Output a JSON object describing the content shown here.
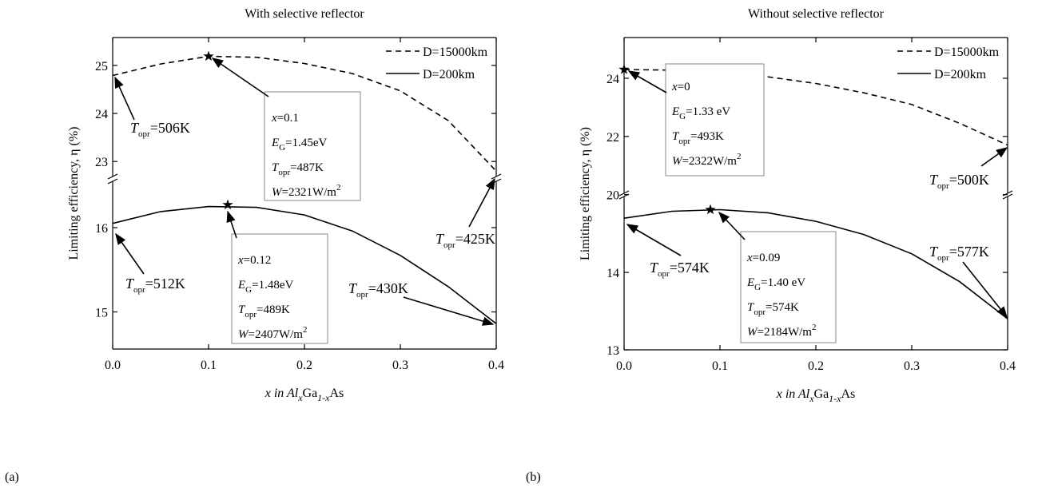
{
  "chart_data": [
    {
      "type": "line",
      "panel_label": "(a)",
      "title": "With selective reflector",
      "xlabel": [
        "x",
        " in Al",
        "x",
        "Ga",
        "1-x",
        "As"
      ],
      "ylabel": "Limiting efficiency, η (%)",
      "x": [
        0,
        0.05,
        0.1,
        0.15,
        0.2,
        0.25,
        0.3,
        0.35,
        0.4
      ],
      "xlim": [
        0,
        0.4
      ],
      "xticks": [
        {
          "value": 0,
          "label": "0.0"
        },
        0.1,
        0.2,
        0.3,
        0.4
      ],
      "y_axis_break": true,
      "ylim": [
        14.56,
        16.53
      ],
      "yticks": [
        15,
        16
      ],
      "y2lim": [
        22.72,
        25.58
      ],
      "y2ticks": [
        23,
        24,
        25
      ],
      "legend": "upper right",
      "series": [
        {
          "name": "D=15000km",
          "color": "#000000",
          "line_style": "dashed",
          "axis": "y2",
          "values": [
            24.79,
            25.03,
            25.19,
            25.17,
            25.04,
            24.83,
            24.47,
            23.85,
            22.8
          ],
          "peak": {
            "x": 0.1,
            "y": 25.19
          }
        },
        {
          "name": "D=200km",
          "color": "#000000",
          "line_style": "solid",
          "values": [
            16.05,
            16.19,
            16.25,
            16.24,
            16.15,
            15.96,
            15.67,
            15.3,
            14.86
          ],
          "peak": {
            "x": 0.12,
            "y": 16.27
          }
        }
      ],
      "annotations": [
        {
          "lines": [
            {
              "symbol": "T",
              "sub": "opr",
              "rest": "=506K"
            }
          ]
        },
        {
          "lines": [
            {
              "symbol": "x",
              "rest": "=0.1"
            },
            {
              "symbol": "E",
              "sub": "G",
              "rest": "=1.45eV"
            },
            {
              "symbol": "T",
              "sub": "opr",
              "rest": "=487K"
            },
            {
              "symbol": "W",
              "rest": "=2321W/m",
              "sup": "2"
            }
          ]
        },
        {
          "lines": [
            {
              "symbol": "T",
              "sub": "opr",
              "rest": "=425K"
            }
          ]
        },
        {
          "lines": [
            {
              "symbol": "T",
              "sub": "opr",
              "rest": "=512K"
            }
          ]
        },
        {
          "lines": [
            {
              "symbol": "x",
              "rest": "=0.12"
            },
            {
              "symbol": "E",
              "sub": "G",
              "rest": "=1.48eV"
            },
            {
              "symbol": "T",
              "sub": "opr",
              "rest": "=489K"
            },
            {
              "symbol": "W",
              "rest": "=2407W/m",
              "sup": "2"
            }
          ]
        },
        {
          "lines": [
            {
              "symbol": "T",
              "sub": "opr",
              "rest": "=430K"
            }
          ]
        }
      ]
    },
    {
      "type": "line",
      "panel_label": "(b)",
      "title": "Without selective reflector",
      "xlabel": [
        "x",
        " in Al",
        "x",
        "Ga",
        "1-x",
        "As"
      ],
      "ylabel": "Limiting efficiency, η (%)",
      "x": [
        0,
        0.05,
        0.1,
        0.15,
        0.2,
        0.25,
        0.3,
        0.35,
        0.4
      ],
      "xlim": [
        0,
        0.4
      ],
      "xticks": [
        {
          "value": 0,
          "label": "0.0"
        },
        0.1,
        0.2,
        0.3,
        0.4
      ],
      "y_axis_break": true,
      "ylim": [
        13,
        14.96
      ],
      "yticks": [
        13,
        14
      ],
      "y2lim": [
        20.1,
        25.4
      ],
      "y2ticks": [
        20,
        22,
        24
      ],
      "legend": "upper right",
      "series": [
        {
          "name": "D=15000km",
          "color": "#000000",
          "line_style": "dashed",
          "axis": "y2",
          "values": [
            24.3,
            24.28,
            24.2,
            24.05,
            23.82,
            23.5,
            23.1,
            22.45,
            21.7
          ],
          "peak": {
            "x": 0,
            "y": 24.3
          }
        },
        {
          "name": "D=200km",
          "color": "#000000",
          "line_style": "solid",
          "values": [
            14.7,
            14.79,
            14.81,
            14.77,
            14.66,
            14.49,
            14.24,
            13.88,
            13.4
          ],
          "peak": {
            "x": 0.09,
            "y": 14.81
          }
        }
      ],
      "annotations": [
        {
          "lines": [
            {
              "symbol": "x",
              "rest": "=0"
            },
            {
              "symbol": "E",
              "sub": "G",
              "rest": "=1.33 eV"
            },
            {
              "symbol": "T",
              "sub": "opr",
              "rest": "=493K"
            },
            {
              "symbol": "W",
              "rest": "=2322W/m",
              "sup": "2"
            }
          ]
        },
        {
          "lines": [
            {
              "symbol": "T",
              "sub": "opr",
              "rest": "=500K"
            }
          ]
        },
        {
          "lines": [
            {
              "symbol": "T",
              "sub": "opr",
              "rest": "=574K"
            }
          ]
        },
        {
          "lines": [
            {
              "symbol": "x",
              "rest": "=0.09"
            },
            {
              "symbol": "E",
              "sub": "G",
              "rest": "=1.40 eV"
            },
            {
              "symbol": "T",
              "sub": "opr",
              "rest": "=574K"
            },
            {
              "symbol": "W",
              "rest": "=2184W/m",
              "sup": "2"
            }
          ]
        },
        {
          "lines": [
            {
              "symbol": "T",
              "sub": "opr",
              "rest": "=577K"
            }
          ]
        }
      ]
    }
  ]
}
